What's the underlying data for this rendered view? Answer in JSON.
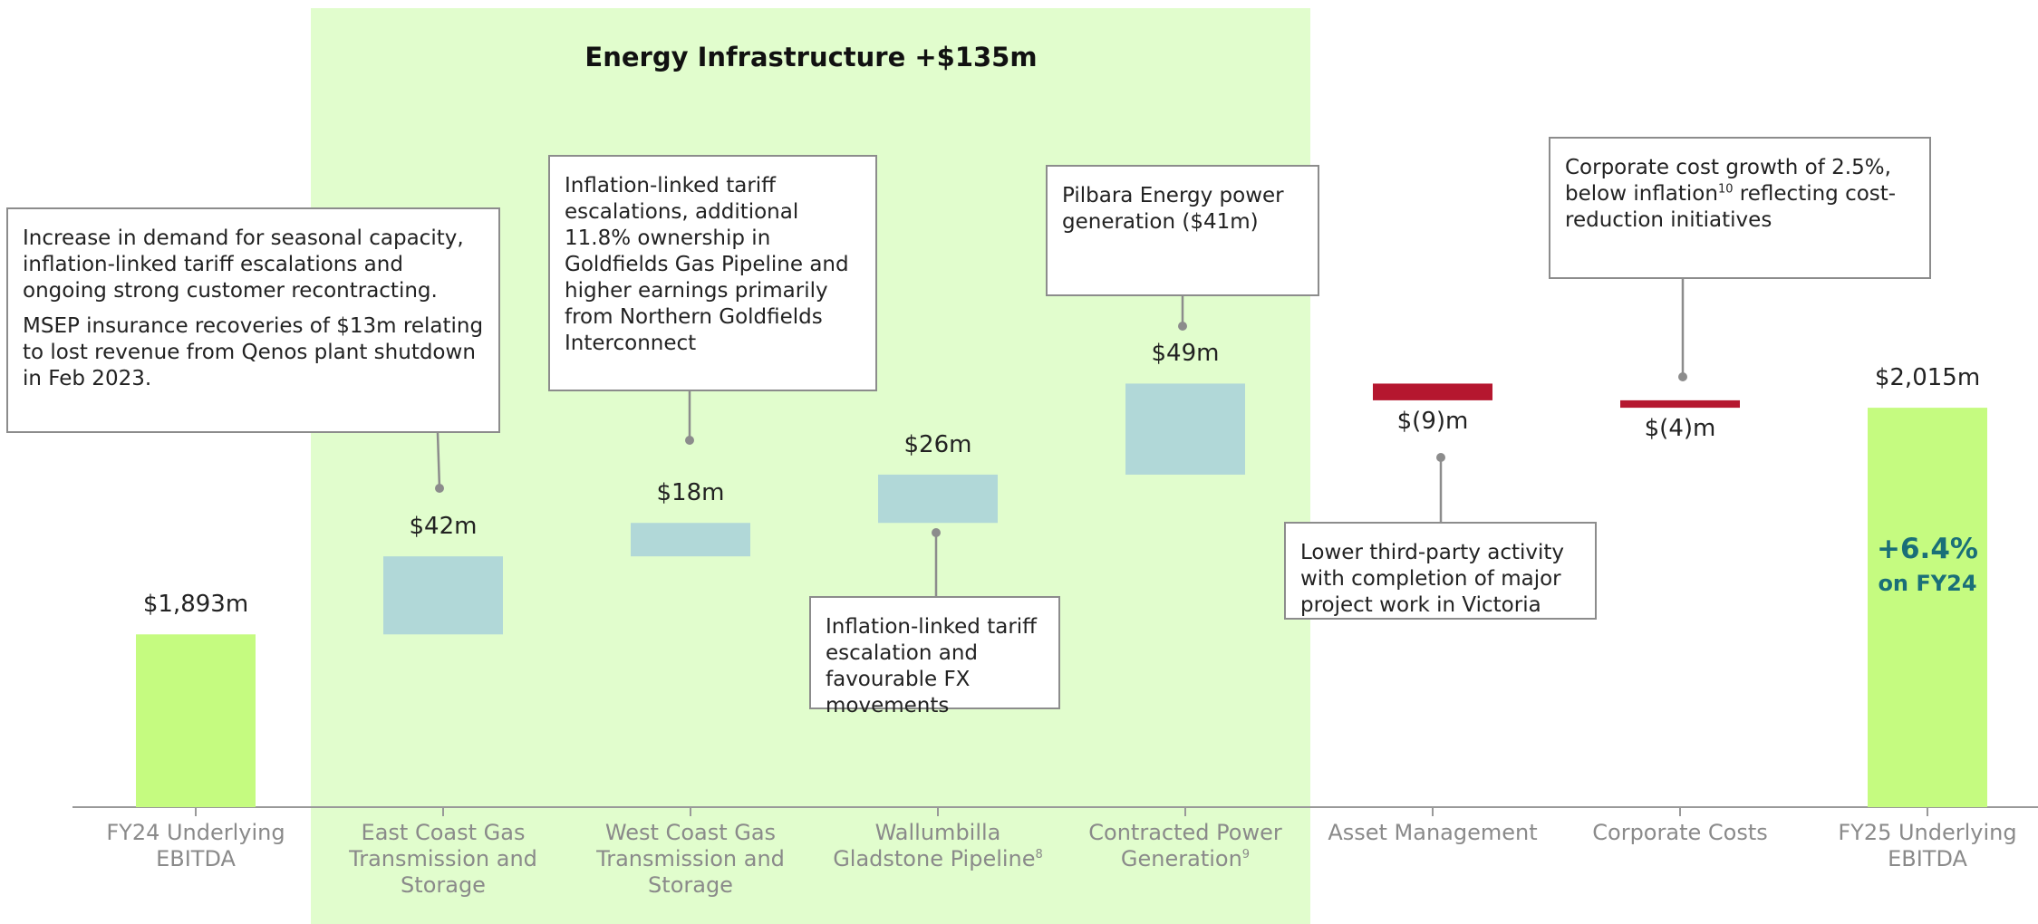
{
  "chart_data": {
    "type": "waterfall",
    "title": "Energy Infrastructure +$135m",
    "categories": [
      "FY24 Underlying EBITDA",
      "East Coast Gas Transmission and Storage",
      "West Coast Gas Transmission and Storage",
      "Wallumbilla Gladstone Pipeline",
      "Contracted Power Generation",
      "Asset Management",
      "Corporate Costs",
      "FY25 Underlying EBITDA"
    ],
    "category_notes": [
      null,
      null,
      null,
      "8",
      "9",
      null,
      null,
      null
    ],
    "values": [
      1893,
      42,
      18,
      26,
      49,
      -9,
      -4,
      2015
    ],
    "value_labels": [
      "$1,893m",
      "$42m",
      "$18m",
      "$26m",
      "$49m",
      "$(9)m",
      "$(4)m",
      "$2,015m"
    ],
    "measures": [
      "total",
      "relative",
      "relative",
      "relative",
      "relative",
      "relative",
      "relative",
      "total"
    ],
    "colors": {
      "total": "#c5fb80",
      "increase": "#b1d8d8",
      "decrease": "#b5172f",
      "group": "#e1fdcd"
    },
    "ylim": [
      1800,
      2234
    ],
    "annotations": [
      {
        "paragraphs": [
          [
            {
              "text": "Increase in demand for seasonal capacity, inflation-linked tariff escalations and ongoing strong customer recontracting."
            }
          ],
          [
            {
              "text": "MSEP insurance recoveries of $13m relating to lost revenue from Qenos plant shutdown in Feb 2023."
            }
          ]
        ]
      },
      {
        "paragraphs": [
          [
            {
              "text": "Inflation-linked tariff escalations, additional 11.8% ownership in Goldfields Gas Pipeline and higher earnings primarily from Northern Goldfields Interconnect"
            }
          ]
        ]
      },
      {
        "paragraphs": [
          [
            {
              "text": "Inflation-linked tariff escalation and favourable FX movements"
            }
          ]
        ]
      },
      {
        "paragraphs": [
          [
            {
              "text": "Pilbara Energy power generation ($41m)"
            }
          ]
        ]
      },
      {
        "paragraphs": [
          [
            {
              "text": "Lower third-party activity with completion of major project work in Victoria"
            }
          ]
        ]
      },
      {
        "paragraphs": [
          [
            {
              "text": "Corporate cost growth of 2.5%, below inflation"
            },
            {
              "sup": "10"
            },
            {
              "text": " reflecting cost-reduction initiatives"
            }
          ]
        ]
      }
    ],
    "callout": {
      "value": "+6.4%",
      "text": "on FY24"
    }
  }
}
